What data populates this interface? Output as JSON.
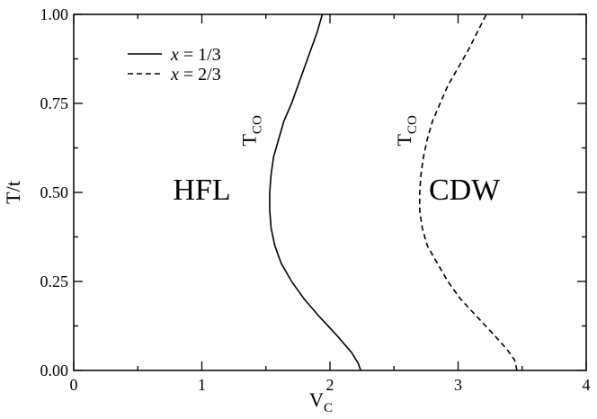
{
  "chart_data": {
    "type": "line",
    "title": "",
    "xlabel": "V",
    "xlabel_sub": "C",
    "ylabel": "T/t",
    "xlim": [
      0,
      4
    ],
    "ylim": [
      0,
      1
    ],
    "x_ticks": [
      "0",
      "1",
      "2",
      "3",
      "4"
    ],
    "y_ticks": [
      "0.00",
      "0.25",
      "0.50",
      "0.75",
      "1.00"
    ],
    "grid": false,
    "legend_position": "top-left",
    "series": [
      {
        "name_var": "x",
        "name_rest": " = 1/3",
        "style": "solid",
        "points": [
          [
            2.24,
            0.0
          ],
          [
            2.22,
            0.02
          ],
          [
            2.17,
            0.05
          ],
          [
            2.05,
            0.1
          ],
          [
            1.92,
            0.15
          ],
          [
            1.8,
            0.2
          ],
          [
            1.7,
            0.25
          ],
          [
            1.62,
            0.3
          ],
          [
            1.57,
            0.35
          ],
          [
            1.54,
            0.4
          ],
          [
            1.53,
            0.45
          ],
          [
            1.53,
            0.5
          ],
          [
            1.54,
            0.55
          ],
          [
            1.56,
            0.6
          ],
          [
            1.6,
            0.65
          ],
          [
            1.64,
            0.7
          ],
          [
            1.7,
            0.75
          ],
          [
            1.75,
            0.8
          ],
          [
            1.8,
            0.85
          ],
          [
            1.85,
            0.9
          ],
          [
            1.9,
            0.95
          ],
          [
            1.94,
            1.0
          ]
        ]
      },
      {
        "name_var": "x",
        "name_rest": " = 2/3",
        "style": "dashed",
        "points": [
          [
            3.46,
            0.0
          ],
          [
            3.44,
            0.03
          ],
          [
            3.38,
            0.06
          ],
          [
            3.28,
            0.1
          ],
          [
            3.15,
            0.15
          ],
          [
            3.02,
            0.2
          ],
          [
            2.92,
            0.25
          ],
          [
            2.84,
            0.3
          ],
          [
            2.76,
            0.35
          ],
          [
            2.72,
            0.4
          ],
          [
            2.7,
            0.45
          ],
          [
            2.7,
            0.5
          ],
          [
            2.71,
            0.55
          ],
          [
            2.73,
            0.6
          ],
          [
            2.76,
            0.65
          ],
          [
            2.8,
            0.7
          ],
          [
            2.86,
            0.75
          ],
          [
            2.92,
            0.8
          ],
          [
            3.0,
            0.85
          ],
          [
            3.08,
            0.9
          ],
          [
            3.15,
            0.95
          ],
          [
            3.22,
            1.0
          ]
        ]
      }
    ],
    "annotations": [
      {
        "text": "T",
        "sub": "CO",
        "x": 1.42,
        "y": 0.63
      },
      {
        "text": "T",
        "sub": "CO",
        "x": 2.63,
        "y": 0.63
      }
    ],
    "regions": [
      {
        "text": "HFL",
        "x": 1.0,
        "y": 0.48
      },
      {
        "text": "CDW",
        "x": 3.05,
        "y": 0.48
      }
    ]
  }
}
